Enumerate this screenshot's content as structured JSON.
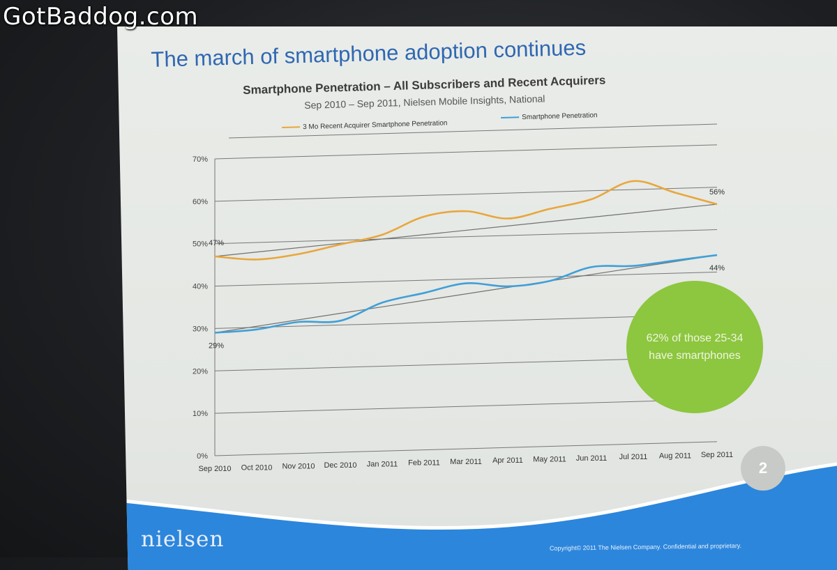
{
  "watermark": "GotBaddog.com",
  "slide": {
    "title": "The march of smartphone adoption continues",
    "page_number": "2",
    "logo": "nielsen",
    "copyright": "Copyright© 2011 The Nielsen Company. Confidential and proprietary.",
    "callout": "62% of those 25-34 have smartphones",
    "colors": {
      "title": "#2f67b2",
      "acquirer_line": "#e9a63c",
      "penetration_line": "#3f9fd8",
      "trend_line": "#707070",
      "callout": "#8dc63f",
      "footer_wave": "#2c86dc"
    }
  },
  "chart_data": {
    "type": "line",
    "title": "Smartphone Penetration – All Subscribers and Recent Acquirers",
    "subtitle": "Sep 2010 – Sep 2011, Nielsen Mobile Insights, National",
    "categories": [
      "Sep 2010",
      "Oct 2010",
      "Nov 2010",
      "Dec 2010",
      "Jan 2011",
      "Feb 2011",
      "Mar 2011",
      "Apr 2011",
      "May 2011",
      "Jun 2011",
      "Jul 2011",
      "Aug 2011",
      "Sep 2011"
    ],
    "series": [
      {
        "name": "3 Mo Recent Acquirer Smartphone Penetration",
        "values": [
          47,
          46,
          47,
          49,
          51,
          55,
          56,
          54,
          56,
          58,
          62,
          59,
          56
        ],
        "start_label": "47%",
        "end_label": "56%"
      },
      {
        "name": "Smartphone Penetration",
        "values": [
          29,
          29.5,
          31,
          31,
          35,
          37,
          39,
          38,
          39,
          42,
          42,
          43,
          44
        ],
        "start_label": "29%",
        "end_label": "44%"
      }
    ],
    "trend_lines": true,
    "yticks": [
      "0%",
      "10%",
      "20%",
      "30%",
      "40%",
      "50%",
      "60%",
      "70%"
    ],
    "ylim": [
      0,
      70
    ],
    "grid": true,
    "legend_position": "top"
  }
}
